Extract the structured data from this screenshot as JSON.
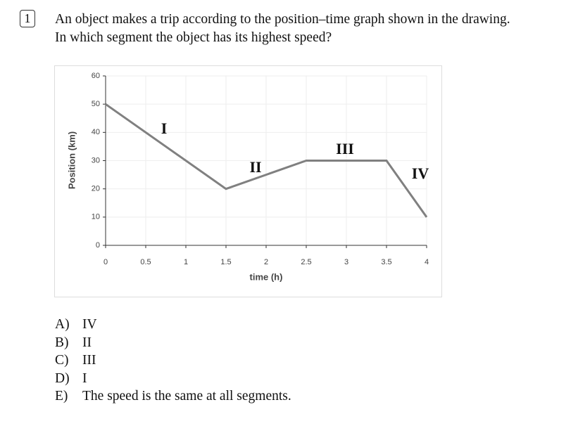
{
  "question": {
    "number": "1",
    "lines": [
      "An object makes a trip according to the position–time graph shown in the drawing.",
      "In which segment the object has its highest speed?"
    ]
  },
  "chart_data": {
    "type": "line",
    "x": [
      0,
      1.5,
      2.5,
      3.5,
      4
    ],
    "values": [
      50,
      20,
      30,
      30,
      10
    ],
    "color": "#808080",
    "xlabel": "time (h)",
    "ylabel": "Position (km)",
    "xlim": [
      0,
      4
    ],
    "ylim": [
      0,
      60
    ],
    "xticks": [
      0,
      0.5,
      1,
      1.5,
      2,
      2.5,
      3,
      3.5,
      4
    ],
    "yticks": [
      0,
      10,
      20,
      30,
      40,
      50,
      60
    ],
    "grid": true,
    "annotations": [
      "I",
      "II",
      "III",
      "IV"
    ]
  },
  "options": [
    {
      "letter": "A)",
      "text": "IV"
    },
    {
      "letter": "B)",
      "text": "II"
    },
    {
      "letter": "C)",
      "text": "III"
    },
    {
      "letter": "D)",
      "text": "I"
    },
    {
      "letter": "E)",
      "text": "The speed is the same at all segments."
    }
  ]
}
